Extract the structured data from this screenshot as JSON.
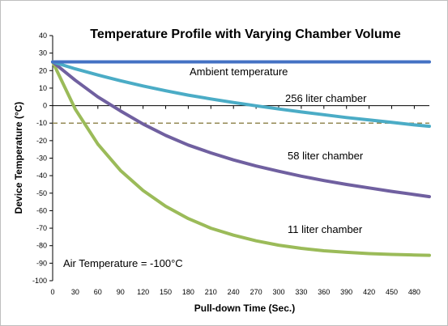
{
  "chart_data": {
    "type": "line",
    "title": "Temperature Profile with Varying Chamber Volume",
    "xlabel": "Pull-down Time (Sec.)",
    "ylabel": "Device Temperature (°C)",
    "xlim": [
      0,
      500
    ],
    "ylim": [
      -100,
      40
    ],
    "xticks": [
      0,
      30,
      60,
      90,
      120,
      150,
      180,
      210,
      240,
      270,
      300,
      330,
      360,
      390,
      420,
      450,
      480
    ],
    "yticks": [
      40,
      30,
      20,
      10,
      0,
      -10,
      -20,
      -30,
      -40,
      -50,
      -60,
      -70,
      -80,
      -90,
      -100
    ],
    "grid": false,
    "reference_line": {
      "y": -10,
      "color": "#948a54",
      "style": "dashed"
    },
    "series": [
      {
        "name": "Ambient temperature",
        "color": "#4472c4",
        "x": [
          0,
          500
        ],
        "y": [
          25,
          25
        ]
      },
      {
        "name": "256 liter chamber",
        "color": "#4bacc6",
        "x": [
          0,
          30,
          60,
          90,
          120,
          150,
          180,
          210,
          240,
          270,
          300,
          330,
          360,
          390,
          420,
          450,
          480,
          500
        ],
        "y": [
          25,
          21,
          17.5,
          14.2,
          11.2,
          8.5,
          6,
          3.8,
          1.8,
          -0.1,
          -1.9,
          -3.6,
          -5.2,
          -6.8,
          -8.2,
          -9.6,
          -11,
          -11.8
        ]
      },
      {
        "name": "58 liter chamber",
        "color": "#7060a0",
        "x": [
          0,
          30,
          60,
          90,
          120,
          150,
          180,
          210,
          240,
          270,
          300,
          330,
          360,
          390,
          420,
          450,
          480,
          500
        ],
        "y": [
          25,
          14.5,
          5,
          -3,
          -10.5,
          -17,
          -22.5,
          -27,
          -31,
          -34.5,
          -37.5,
          -40.3,
          -42.8,
          -45,
          -47,
          -49,
          -50.8,
          -52
        ]
      },
      {
        "name": "11 liter chamber",
        "color": "#9bbb59",
        "x": [
          0,
          30,
          60,
          90,
          120,
          150,
          180,
          210,
          240,
          270,
          300,
          330,
          360,
          390,
          420,
          450,
          480,
          500
        ],
        "y": [
          25,
          -2,
          -22,
          -37,
          -48.5,
          -57.5,
          -64.5,
          -70,
          -74,
          -77.2,
          -79.7,
          -81.5,
          -82.9,
          -83.8,
          -84.5,
          -85,
          -85.3,
          -85.5
        ]
      }
    ],
    "annotations": {
      "ambient": "Ambient temperature",
      "c256": "256 liter chamber",
      "c58": "58 liter chamber",
      "c11": "11 liter chamber",
      "air": "Air Temperature = -100°C"
    }
  }
}
